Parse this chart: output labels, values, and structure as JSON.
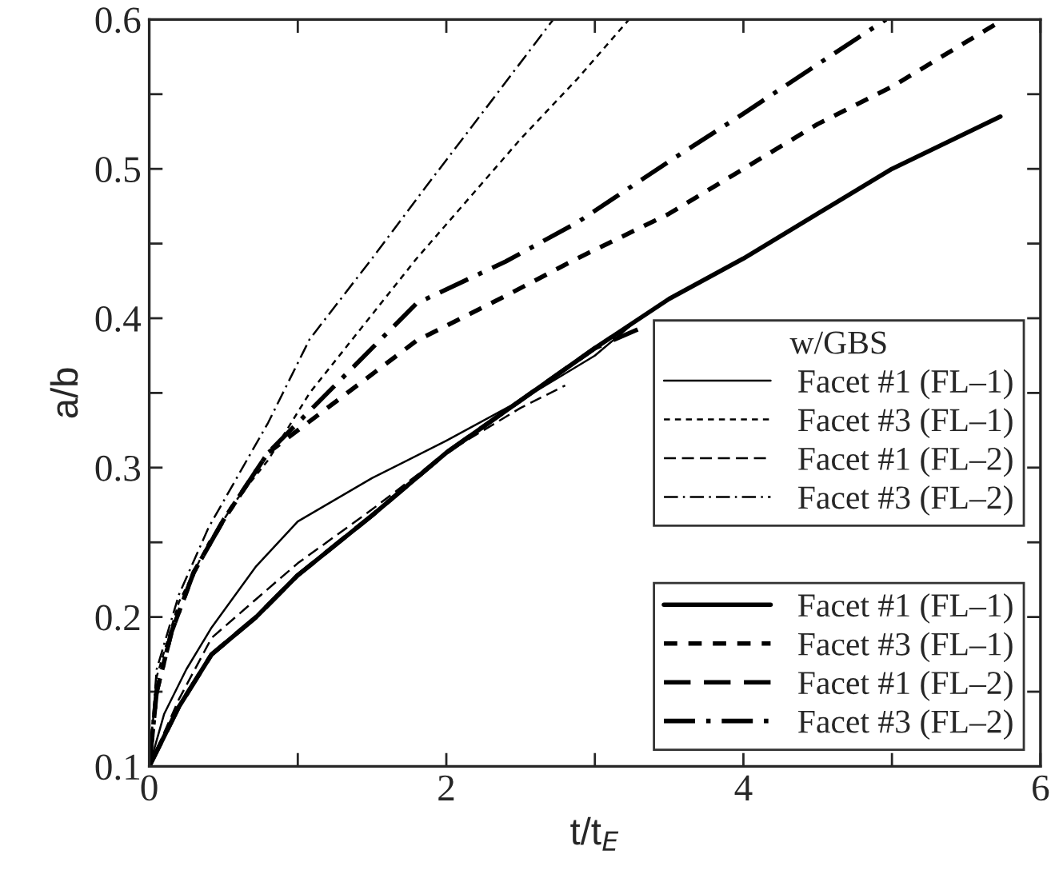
{
  "chart_data": {
    "type": "line",
    "xlabel": "t/t$_{E}$",
    "ylabel": "a/b",
    "legend_title": "w/GBS",
    "legend": "bottom right",
    "grid": false,
    "xlim": [
      0,
      6
    ],
    "ylim": [
      0.1,
      0.6
    ],
    "xticks": [
      0,
      {
        "value": 1,
        "label": null
      },
      2,
      {
        "value": 3,
        "label": null
      },
      4,
      {
        "value": 5,
        "label": null
      },
      6
    ],
    "yticks": [
      0.1,
      {
        "value": 0.15,
        "label": null
      },
      0.2,
      {
        "value": 0.25,
        "label": null
      },
      0.3,
      {
        "value": 0.35,
        "label": null
      },
      0.4,
      {
        "value": 0.45,
        "label": null
      },
      0.5,
      {
        "value": 0.55,
        "label": null
      },
      0.6
    ],
    "series": [
      {
        "name": "Facet #1 (FL–1)",
        "color": "#000000",
        "line_style": "solid",
        "x": [
          0,
          0.1,
          0.25,
          0.42,
          0.72,
          1.0,
          1.5,
          2.0,
          2.5,
          3.0,
          3.3
        ],
        "values": [
          0.1,
          0.135,
          0.165,
          0.193,
          0.234,
          0.264,
          0.293,
          0.318,
          0.345,
          0.375,
          0.4
        ]
      },
      {
        "name": "Facet #3 (FL–1)",
        "color": "#000000",
        "line_style": "dashed",
        "x": [
          0,
          0.05,
          0.2,
          0.4,
          0.6,
          0.8,
          1.08,
          1.8,
          2.5,
          2.88,
          3.23
        ],
        "values": [
          0.1,
          0.16,
          0.21,
          0.25,
          0.28,
          0.305,
          0.35,
          0.44,
          0.52,
          0.56,
          0.6
        ]
      },
      {
        "name": "Facet #1 (FL–2)",
        "color": "#000000",
        "line_style": "long dashed",
        "x": [
          0,
          0.2,
          0.42,
          0.72,
          1.0,
          1.5,
          2.0,
          2.5,
          2.8
        ],
        "values": [
          0.1,
          0.145,
          0.186,
          0.212,
          0.236,
          0.272,
          0.31,
          0.34,
          0.355
        ]
      },
      {
        "name": "Facet #3 (FL–2)",
        "color": "#000000",
        "line_style": "dashdot",
        "x": [
          0,
          0.05,
          0.2,
          0.4,
          0.6,
          0.8,
          1.08,
          1.5,
          1.87,
          2.3,
          2.72
        ],
        "values": [
          0.1,
          0.165,
          0.215,
          0.26,
          0.295,
          0.33,
          0.386,
          0.44,
          0.489,
          0.545,
          0.6
        ]
      },
      {
        "name": "Facet #1 (FL–1)",
        "color": "#000000",
        "line_style": "solid",
        "x": [
          0,
          0.2,
          0.42,
          0.72,
          1.0,
          1.5,
          2.0,
          2.5,
          3.0,
          3.5,
          4.0,
          4.5,
          5.0,
          5.73
        ],
        "values": [
          0.1,
          0.14,
          0.175,
          0.2,
          0.228,
          0.268,
          0.31,
          0.345,
          0.38,
          0.413,
          0.44,
          0.47,
          0.5,
          0.535
        ]
      },
      {
        "name": "Facet #3 (FL–1)",
        "color": "#000000",
        "line_style": "dashed",
        "x": [
          0,
          0.05,
          0.15,
          0.3,
          0.5,
          0.8,
          1.2,
          1.8,
          2.4,
          2.88,
          3.5,
          4.0,
          4.5,
          5.0,
          5.75
        ],
        "values": [
          0.1,
          0.15,
          0.19,
          0.23,
          0.265,
          0.31,
          0.34,
          0.385,
          0.415,
          0.44,
          0.47,
          0.5,
          0.53,
          0.555,
          0.6
        ]
      },
      {
        "name": "Facet #1 (FL–2)",
        "color": "#000000",
        "line_style": "long dashed",
        "x": [
          0,
          0.2,
          0.42,
          0.72,
          1.0,
          1.5,
          2.0,
          2.5,
          3.0,
          3.3
        ],
        "values": [
          0.1,
          0.14,
          0.175,
          0.2,
          0.228,
          0.268,
          0.31,
          0.345,
          0.38,
          0.393
        ]
      },
      {
        "name": "Facet #3 (FL–2)",
        "color": "#000000",
        "line_style": "dashdot",
        "x": [
          0,
          0.05,
          0.15,
          0.3,
          0.5,
          0.8,
          1.2,
          1.8,
          2.4,
          2.88,
          3.5,
          4.0,
          4.5,
          4.96
        ],
        "values": [
          0.1,
          0.15,
          0.19,
          0.23,
          0.265,
          0.31,
          0.35,
          0.41,
          0.438,
          0.464,
          0.505,
          0.537,
          0.57,
          0.6
        ]
      }
    ]
  }
}
